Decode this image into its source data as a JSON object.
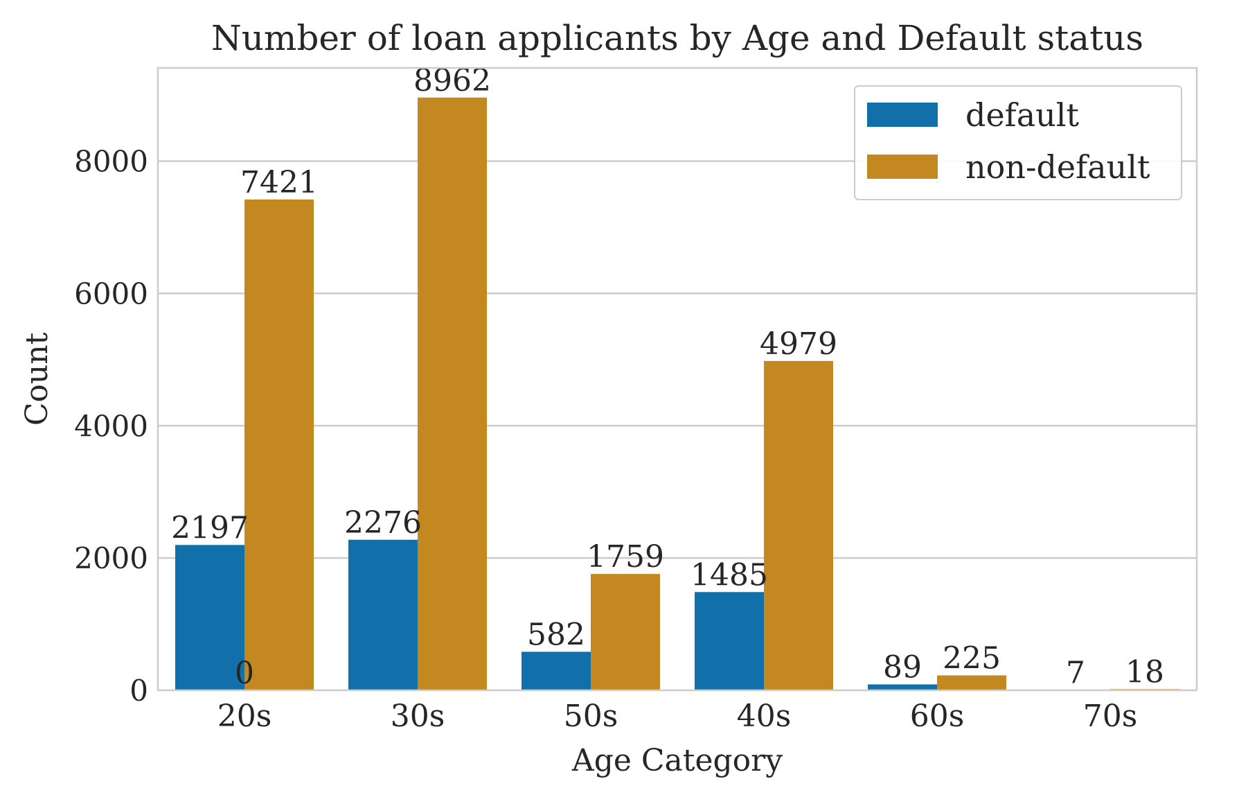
{
  "chart_data": {
    "type": "bar",
    "title": "Number of loan applicants by Age and Default status",
    "xlabel": "Age Category",
    "ylabel": "Count",
    "categories": [
      "20s",
      "30s",
      "50s",
      "40s",
      "60s",
      "70s"
    ],
    "series": [
      {
        "name": "default",
        "color": "#1170aa",
        "values": [
          2197,
          2276,
          582,
          1485,
          89,
          7
        ]
      },
      {
        "name": "non-default",
        "color": "#c48820",
        "values": [
          7421,
          8962,
          1759,
          4979,
          225,
          18
        ]
      }
    ],
    "extra_labels": [
      {
        "category": "20s",
        "text": "0"
      }
    ],
    "yticks": [
      0,
      2000,
      4000,
      6000,
      8000
    ],
    "ylim": [
      0,
      9410
    ],
    "grid": true,
    "legend": "top-right"
  }
}
